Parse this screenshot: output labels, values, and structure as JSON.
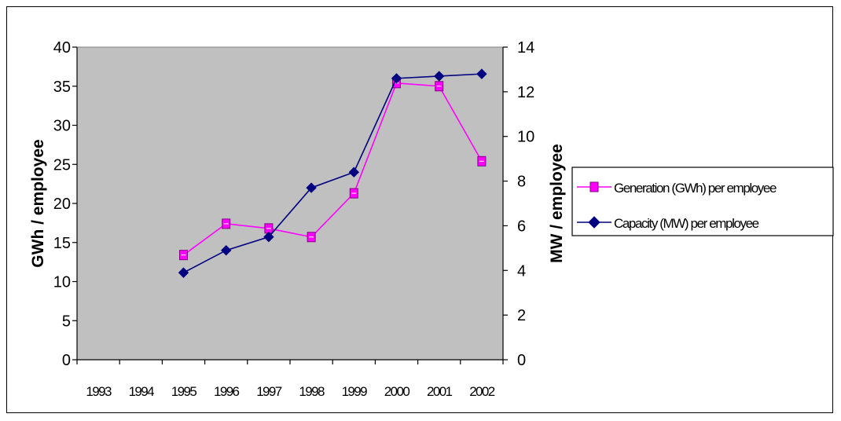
{
  "chart_data": {
    "type": "line",
    "categories": [
      "1993",
      "1994",
      "1995",
      "1996",
      "1997",
      "1998",
      "1999",
      "2000",
      "2001",
      "2002"
    ],
    "y_left": {
      "label": "GWh / employee",
      "lim": [
        0,
        40
      ],
      "ticks": [
        0,
        5,
        10,
        15,
        20,
        25,
        30,
        35,
        40
      ]
    },
    "y_right": {
      "label": "MW / employee",
      "lim": [
        0,
        14
      ],
      "ticks": [
        0,
        2,
        4,
        6,
        8,
        10,
        12,
        14
      ]
    },
    "series": [
      {
        "name": "Generation (GWh) per employee",
        "axis": "left",
        "color": "#ff00ff",
        "marker": "square",
        "values": [
          null,
          null,
          13.4,
          17.4,
          16.8,
          15.7,
          21.3,
          35.4,
          35.0,
          25.4
        ]
      },
      {
        "name": "Capacity (MW) per employee",
        "axis": "right",
        "color": "#000080",
        "marker": "diamond",
        "values": [
          null,
          null,
          3.9,
          4.9,
          5.5,
          7.7,
          8.4,
          12.6,
          12.7,
          12.8
        ]
      }
    ],
    "plot_background": "#c0c0c0",
    "grid": false,
    "legend_position": "right"
  }
}
